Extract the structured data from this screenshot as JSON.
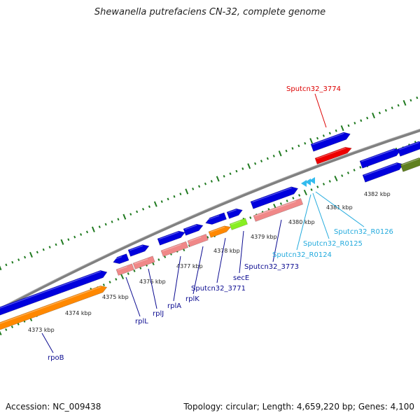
{
  "title": "Shewanella putrefaciens CN-32, complete genome",
  "footer": {
    "accession": "Accession: NC_009438",
    "summary": "Topology: circular; Length: 4,659,220 bp; Genes: 4,100"
  },
  "colors": {
    "backbone": "#808080",
    "cds": "#0000dd",
    "gene_pink": "#f08888",
    "gene_orange": "#ff8800",
    "gene_lime": "#88ee22",
    "gene_olive": "#608020",
    "highlight_red": "#ee0000",
    "tick": "#207a20",
    "label_navy": "#0a0a90",
    "label_red": "#dd0000",
    "label_cyan": "#22aadd"
  },
  "kbp_ticks": [
    "4373 kbp",
    "4374 kbp",
    "4375 kbp",
    "4376 kbp",
    "4377 kbp",
    "4378 kbp",
    "4379 kbp",
    "4380 kbp",
    "4381 kbp",
    "4382 kbp"
  ],
  "gene_labels": [
    "rpoB",
    "rplL",
    "rplJ",
    "rplA",
    "rplK",
    "Sputcn32_3771",
    "secE",
    "Sputcn32_3773",
    "Sputcn32_R0124",
    "Sputcn32_R0125",
    "Sputcn32_R0126",
    "Sputcn32_3774"
  ]
}
